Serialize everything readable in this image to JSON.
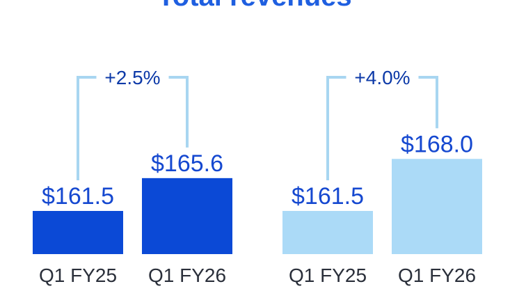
{
  "page": {
    "title": "Total revenues"
  },
  "chart_data": [
    {
      "type": "bar",
      "categories": [
        "Q1 FY25",
        "Q1 FY26"
      ],
      "values": [
        161.5,
        165.6
      ],
      "value_labels": [
        "$161.5",
        "$165.6"
      ],
      "change_label": "+2.5%",
      "colors": [
        "#0b49d6",
        "#0b49d6"
      ],
      "bracket_color": "#a8d6f1"
    },
    {
      "type": "bar",
      "categories": [
        "Q1 FY25",
        "Q1 FY26"
      ],
      "values": [
        161.5,
        168.0
      ],
      "value_labels": [
        "$161.5",
        "$168.0"
      ],
      "change_label": "+4.0%",
      "colors": [
        "#abdaf7",
        "#abdaf7"
      ],
      "bracket_color": "#a8d6f1"
    }
  ]
}
